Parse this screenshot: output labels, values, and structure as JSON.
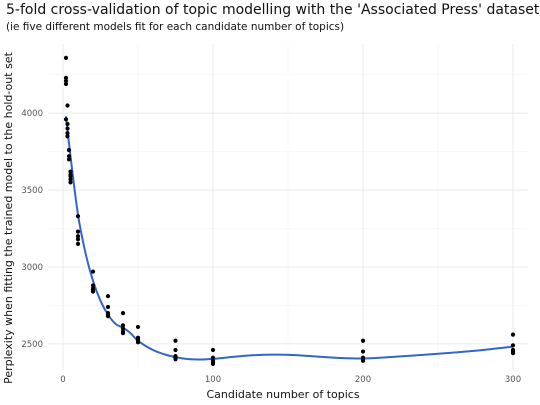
{
  "chart_data": {
    "type": "scatter",
    "title": "5-fold cross-validation of topic modelling with the 'Associated Press' dataset",
    "subtitle": "(ie five different models fit for each candidate number of topics)",
    "xlabel": "Candidate number of topics",
    "ylabel": "Perplexity when fitting the trained model to the hold-out set",
    "xlim": [
      -10,
      310
    ],
    "ylim": [
      2330,
      4450
    ],
    "x_ticks": [
      0,
      100,
      200,
      300
    ],
    "y_ticks": [
      2500,
      3000,
      3500,
      4000
    ],
    "grid": true,
    "point_color": "#000000",
    "line_color": "#3366cc",
    "points": [
      {
        "x": 2,
        "y": 4360
      },
      {
        "x": 2,
        "y": 4230
      },
      {
        "x": 2,
        "y": 4210
      },
      {
        "x": 2,
        "y": 4190
      },
      {
        "x": 2,
        "y": 3960
      },
      {
        "x": 3,
        "y": 4050
      },
      {
        "x": 3,
        "y": 3930
      },
      {
        "x": 3,
        "y": 3900
      },
      {
        "x": 3,
        "y": 3870
      },
      {
        "x": 3,
        "y": 3850
      },
      {
        "x": 4,
        "y": 3760
      },
      {
        "x": 4,
        "y": 3720
      },
      {
        "x": 4,
        "y": 3700
      },
      {
        "x": 5,
        "y": 3620
      },
      {
        "x": 5,
        "y": 3590
      },
      {
        "x": 5,
        "y": 3570
      },
      {
        "x": 5,
        "y": 3550
      },
      {
        "x": 5,
        "y": 3600
      },
      {
        "x": 10,
        "y": 3330
      },
      {
        "x": 10,
        "y": 3230
      },
      {
        "x": 10,
        "y": 3200
      },
      {
        "x": 10,
        "y": 3180
      },
      {
        "x": 10,
        "y": 3150
      },
      {
        "x": 20,
        "y": 2970
      },
      {
        "x": 20,
        "y": 2880
      },
      {
        "x": 20,
        "y": 2860
      },
      {
        "x": 20,
        "y": 2850
      },
      {
        "x": 20,
        "y": 2840
      },
      {
        "x": 30,
        "y": 2810
      },
      {
        "x": 30,
        "y": 2740
      },
      {
        "x": 30,
        "y": 2700
      },
      {
        "x": 30,
        "y": 2690
      },
      {
        "x": 30,
        "y": 2680
      },
      {
        "x": 40,
        "y": 2700
      },
      {
        "x": 40,
        "y": 2620
      },
      {
        "x": 40,
        "y": 2600
      },
      {
        "x": 40,
        "y": 2580
      },
      {
        "x": 40,
        "y": 2570
      },
      {
        "x": 50,
        "y": 2610
      },
      {
        "x": 50,
        "y": 2540
      },
      {
        "x": 50,
        "y": 2530
      },
      {
        "x": 50,
        "y": 2520
      },
      {
        "x": 50,
        "y": 2510
      },
      {
        "x": 75,
        "y": 2520
      },
      {
        "x": 75,
        "y": 2460
      },
      {
        "x": 75,
        "y": 2420
      },
      {
        "x": 75,
        "y": 2410
      },
      {
        "x": 75,
        "y": 2400
      },
      {
        "x": 100,
        "y": 2460
      },
      {
        "x": 100,
        "y": 2410
      },
      {
        "x": 100,
        "y": 2390
      },
      {
        "x": 100,
        "y": 2380
      },
      {
        "x": 100,
        "y": 2370
      },
      {
        "x": 200,
        "y": 2520
      },
      {
        "x": 200,
        "y": 2450
      },
      {
        "x": 200,
        "y": 2410
      },
      {
        "x": 200,
        "y": 2400
      },
      {
        "x": 200,
        "y": 2390
      },
      {
        "x": 300,
        "y": 2560
      },
      {
        "x": 300,
        "y": 2490
      },
      {
        "x": 300,
        "y": 2460
      },
      {
        "x": 300,
        "y": 2450
      },
      {
        "x": 300,
        "y": 2440
      }
    ],
    "smooth_line": [
      {
        "x": 2,
        "y": 3980
      },
      {
        "x": 5,
        "y": 3720
      },
      {
        "x": 10,
        "y": 3340
      },
      {
        "x": 15,
        "y": 3090
      },
      {
        "x": 20,
        "y": 2910
      },
      {
        "x": 25,
        "y": 2780
      },
      {
        "x": 30,
        "y": 2690
      },
      {
        "x": 35,
        "y": 2630
      },
      {
        "x": 40,
        "y": 2605
      },
      {
        "x": 45,
        "y": 2570
      },
      {
        "x": 50,
        "y": 2520
      },
      {
        "x": 60,
        "y": 2460
      },
      {
        "x": 70,
        "y": 2425
      },
      {
        "x": 80,
        "y": 2405
      },
      {
        "x": 90,
        "y": 2398
      },
      {
        "x": 100,
        "y": 2402
      },
      {
        "x": 110,
        "y": 2412
      },
      {
        "x": 125,
        "y": 2425
      },
      {
        "x": 140,
        "y": 2430
      },
      {
        "x": 155,
        "y": 2427
      },
      {
        "x": 170,
        "y": 2417
      },
      {
        "x": 185,
        "y": 2408
      },
      {
        "x": 200,
        "y": 2405
      },
      {
        "x": 220,
        "y": 2415
      },
      {
        "x": 240,
        "y": 2428
      },
      {
        "x": 260,
        "y": 2443
      },
      {
        "x": 280,
        "y": 2460
      },
      {
        "x": 300,
        "y": 2482
      }
    ]
  }
}
